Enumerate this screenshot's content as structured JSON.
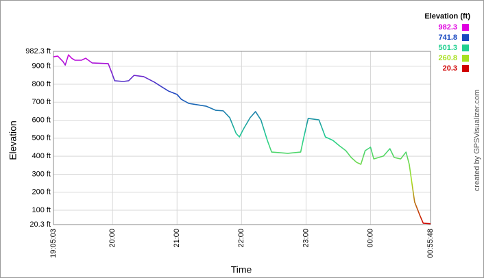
{
  "chart_data": {
    "type": "line",
    "x_label": "Time",
    "y_label": "Elevation",
    "credit": "created by GPSVisualizer.com",
    "legend_title": "Elevation (ft)",
    "color_scale": [
      {
        "value": 982.3,
        "color": "#e000e0"
      },
      {
        "value": 741.8,
        "color": "#1848c0"
      },
      {
        "value": 501.3,
        "color": "#20d090"
      },
      {
        "value": 260.8,
        "color": "#a8e020"
      },
      {
        "value": 20.3,
        "color": "#d00000"
      }
    ],
    "grid": true,
    "x": [
      "19:05:03",
      "19:09",
      "19:14",
      "19:16",
      "19:19",
      "19:22",
      "19:25",
      "19:31",
      "19:35",
      "19:41",
      "19:56",
      "19:59",
      "20:02",
      "20:10",
      "20:15",
      "20:20",
      "20:29",
      "20:39",
      "20:45",
      "20:52",
      "21:00",
      "21:04",
      "21:11",
      "21:27",
      "21:36",
      "21:43",
      "21:49",
      "21:55",
      "21:58",
      "22:02",
      "22:08",
      "22:13",
      "22:18",
      "22:24",
      "22:28",
      "22:43",
      "22:55",
      "22:58",
      "23:02",
      "23:12",
      "23:18",
      "23:25",
      "23:31",
      "23:37",
      "23:42",
      "23:47",
      "23:51",
      "23:55",
      "00:00",
      "00:03",
      "00:12",
      "00:18",
      "00:22",
      "00:28",
      "00:33",
      "00:36",
      "00:38",
      "00:41",
      "00:46",
      "00:49",
      "00:55:48"
    ],
    "values": [
      952,
      956,
      925,
      906,
      963,
      944,
      933,
      933,
      944,
      918,
      914,
      868,
      819,
      815,
      819,
      849,
      842,
      811,
      788,
      762,
      743,
      716,
      693,
      678,
      655,
      652,
      614,
      526,
      507,
      553,
      614,
      648,
      602,
      488,
      423,
      416,
      423,
      507,
      610,
      602,
      507,
      488,
      458,
      431,
      393,
      366,
      355,
      431,
      450,
      385,
      401,
      442,
      393,
      385,
      423,
      355,
      271,
      146,
      70,
      28,
      25
    ],
    "xlim": [
      "19:05:03",
      "00:55:48"
    ],
    "xticks": [
      "19:05:03",
      "20:00",
      "21:00",
      "22:00",
      "23:00",
      "00:00",
      "00:55:48"
    ],
    "ylim": [
      20.3,
      982.3
    ],
    "yticks": [
      {
        "value": 20.3,
        "label": "20.3 ft"
      },
      {
        "value": 100,
        "label": "100 ft"
      },
      {
        "value": 200,
        "label": "200 ft"
      },
      {
        "value": 300,
        "label": "300 ft"
      },
      {
        "value": 400,
        "label": "400 ft"
      },
      {
        "value": 500,
        "label": "500 ft"
      },
      {
        "value": 600,
        "label": "600 ft"
      },
      {
        "value": 700,
        "label": "700 ft"
      },
      {
        "value": 800,
        "label": "800 ft"
      },
      {
        "value": 900,
        "label": "900 ft"
      },
      {
        "value": 982.3,
        "label": "982.3 ft"
      }
    ]
  }
}
